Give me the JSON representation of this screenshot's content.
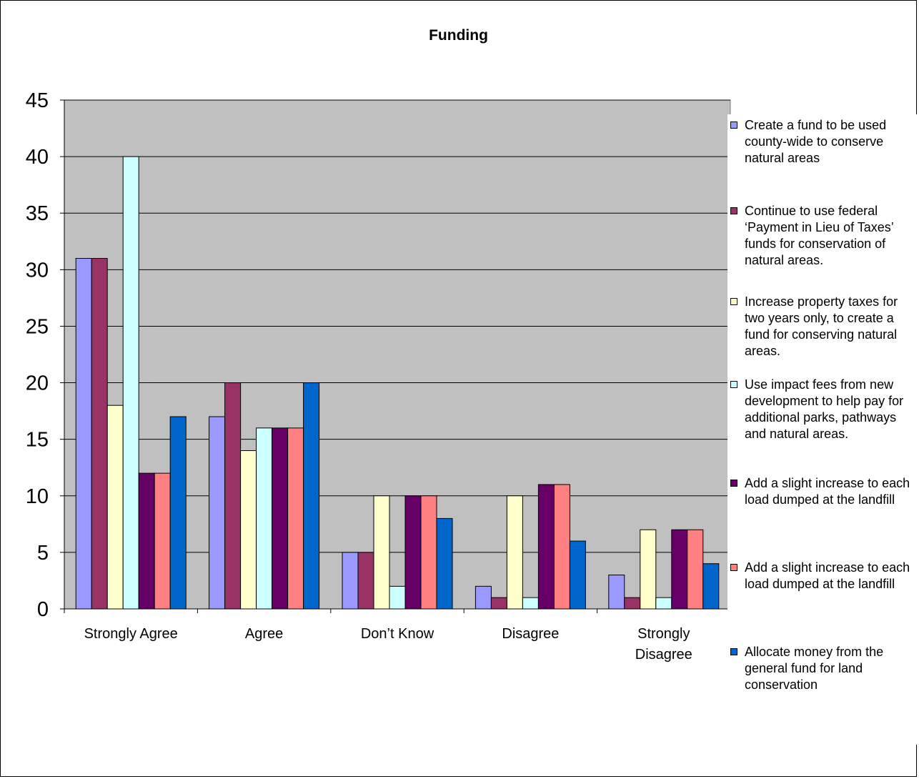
{
  "chart_data": {
    "type": "bar",
    "title": "Funding",
    "xlabel": "",
    "ylabel": "",
    "ylim": [
      0,
      45
    ],
    "ytick_step": 5,
    "grid": true,
    "legend_position": "right",
    "plot_background": "#c0c0c0",
    "categories": [
      "Strongly Agree",
      "Agree",
      "Don’t Know",
      "Disagree",
      "Strongly Disagree"
    ],
    "series": [
      {
        "name": "Create a fund to be used county-wide to conserve natural areas",
        "color": "#9999ff",
        "values": [
          31,
          17,
          5,
          2,
          3
        ]
      },
      {
        "name": "Continue to use federal ‘Payment in Lieu of Taxes’ funds for conservation of natural areas.",
        "color": "#993366",
        "values": [
          31,
          20,
          5,
          1,
          1
        ]
      },
      {
        "name": "Increase property taxes for two years only, to create a fund for conserving natural areas.",
        "color": "#ffffcc",
        "values": [
          18,
          14,
          10,
          10,
          7
        ]
      },
      {
        "name": "Use impact fees from new development to help pay for additional parks, pathways and natural areas.",
        "color": "#ccffff",
        "values": [
          40,
          16,
          2,
          1,
          1
        ]
      },
      {
        "name": "Add a slight increase to each load dumped at the landfill",
        "color": "#660066",
        "values": [
          12,
          16,
          10,
          11,
          7
        ]
      },
      {
        "name": "Add a slight increase to each load dumped at the landfill",
        "color": "#ff8080",
        "values": [
          12,
          16,
          10,
          11,
          7
        ]
      },
      {
        "name": "Allocate money from the general fund for land conservation",
        "color": "#0066cc",
        "values": [
          17,
          20,
          8,
          6,
          4
        ]
      }
    ]
  }
}
